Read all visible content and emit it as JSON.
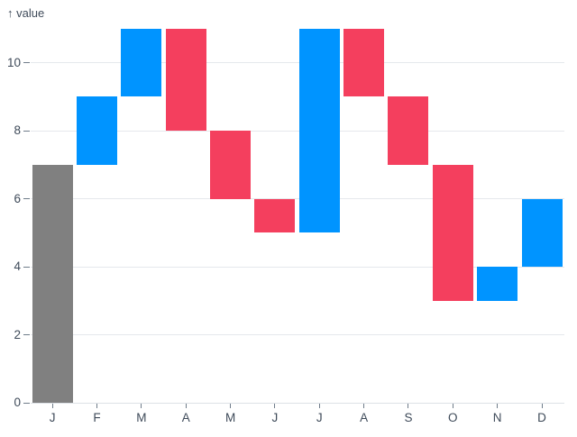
{
  "chart": {
    "axis_title": "↑ value"
  },
  "chart_data": {
    "type": "bar",
    "subtype": "waterfall",
    "title": "",
    "xlabel": "",
    "ylabel": "value",
    "ylim": [
      0,
      11
    ],
    "yticks": [
      0,
      2,
      4,
      6,
      8,
      10
    ],
    "grid": true,
    "legend": "none",
    "categories": [
      "J",
      "F",
      "M",
      "A",
      "M",
      "J",
      "J",
      "A",
      "S",
      "O",
      "N",
      "D"
    ],
    "bars": [
      {
        "label": "J",
        "start": 0,
        "end": 7,
        "role": "total"
      },
      {
        "label": "F",
        "start": 7,
        "end": 9,
        "role": "increase"
      },
      {
        "label": "M",
        "start": 9,
        "end": 11,
        "role": "increase"
      },
      {
        "label": "A",
        "start": 11,
        "end": 8,
        "role": "decrease"
      },
      {
        "label": "M",
        "start": 8,
        "end": 6,
        "role": "decrease"
      },
      {
        "label": "J",
        "start": 6,
        "end": 5,
        "role": "decrease"
      },
      {
        "label": "J",
        "start": 5,
        "end": 11,
        "role": "increase"
      },
      {
        "label": "A",
        "start": 11,
        "end": 9,
        "role": "decrease"
      },
      {
        "label": "S",
        "start": 9,
        "end": 7,
        "role": "decrease"
      },
      {
        "label": "O",
        "start": 7,
        "end": 3,
        "role": "decrease"
      },
      {
        "label": "N",
        "start": 3,
        "end": 4,
        "role": "increase"
      },
      {
        "label": "D",
        "start": 4,
        "end": 6,
        "role": "increase"
      }
    ],
    "colors": {
      "increase": "#0094ff",
      "decrease": "#f43f5e",
      "total": "#808080",
      "grid": "#e5e8ec",
      "axis_line": "#dde1e6",
      "tick": "#6f7c8a",
      "text": "#3e4a59"
    }
  }
}
